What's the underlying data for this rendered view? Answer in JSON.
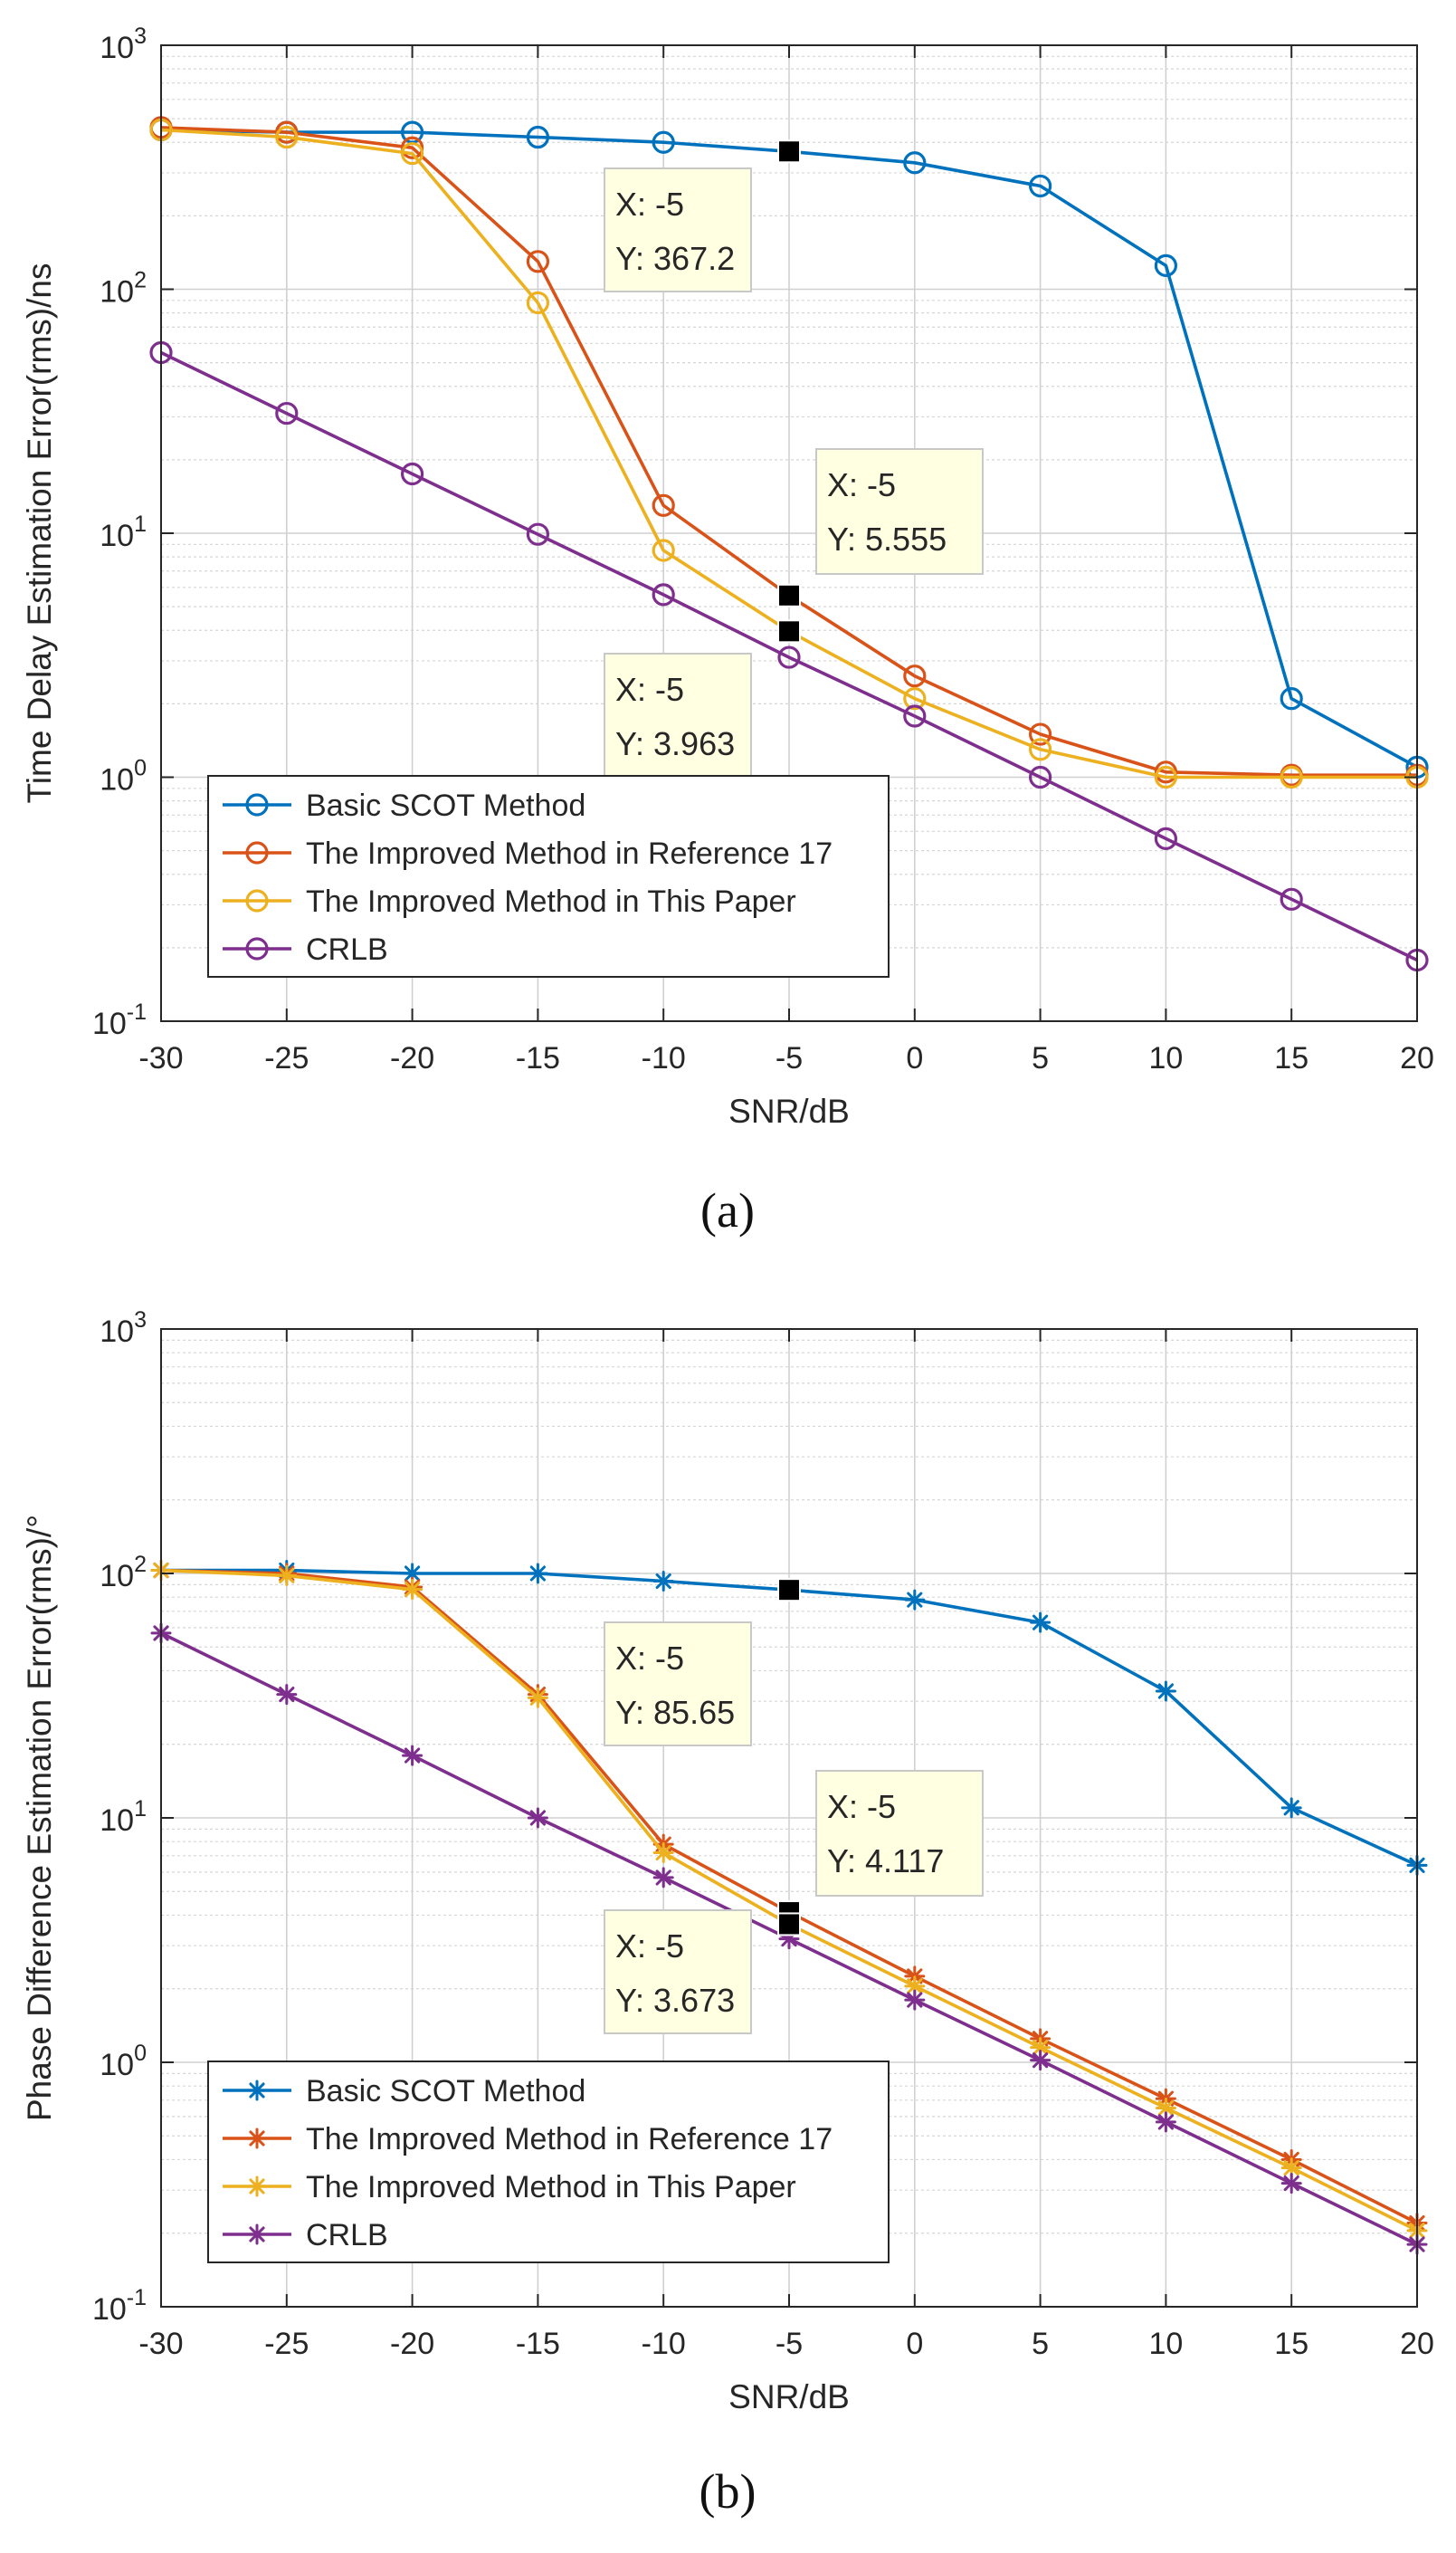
{
  "chart_data": [
    {
      "type": "line",
      "panel_label": "(a)",
      "title": "",
      "xlabel": "SNR/dB",
      "ylabel": "Time Delay Estimation Error(rms)/ns",
      "yscale": "log",
      "xlim": [
        -30,
        20
      ],
      "ylim": [
        0.1,
        1000
      ],
      "grid": true,
      "marker": "circle",
      "x": [
        -30,
        -25,
        -20,
        -15,
        -10,
        -5,
        0,
        5,
        10,
        15,
        20
      ],
      "x_tick_labels": [
        "-30",
        "-25",
        "-20",
        "-15",
        "-10",
        "-5",
        "0",
        "5",
        "10",
        "15",
        "20"
      ],
      "y_ticks": [
        {
          "value": 0.1,
          "base": "10",
          "exp": "-1"
        },
        {
          "value": 1,
          "base": "10",
          "exp": "0"
        },
        {
          "value": 10,
          "base": "10",
          "exp": "1"
        },
        {
          "value": 100,
          "base": "10",
          "exp": "2"
        },
        {
          "value": 1000,
          "base": "10",
          "exp": "3"
        }
      ],
      "legend_position": "bottom-left",
      "series": [
        {
          "name": "Basic SCOT Method",
          "color": "#0072BD",
          "values": [
            450,
            440,
            440,
            420,
            400,
            367.2,
            330,
            265,
            125,
            2.1,
            1.1
          ]
        },
        {
          "name": "The Improved Method in Reference 17",
          "color": "#D95319",
          "values": [
            460,
            440,
            380,
            130,
            13,
            5.555,
            2.6,
            1.5,
            1.05,
            1.02,
            1.02
          ]
        },
        {
          "name": "The Improved Method in This Paper",
          "color": "#EDB120",
          "values": [
            450,
            420,
            360,
            88,
            8.5,
            3.963,
            2.1,
            1.3,
            1.0,
            1.0,
            1.0
          ]
        },
        {
          "name": "CRLB",
          "color": "#7E2F8E",
          "values": [
            55,
            31,
            17.5,
            9.9,
            5.6,
            3.1,
            1.78,
            1.0,
            0.56,
            0.316,
            0.178
          ]
        }
      ],
      "datatips": [
        {
          "x_text": "X: -5",
          "y_text": "Y: 367.2",
          "x": -5,
          "y": 367.2
        },
        {
          "x_text": "X: -5",
          "y_text": "Y: 5.555",
          "x": -5,
          "y": 5.555
        },
        {
          "x_text": "X: -5",
          "y_text": "Y: 3.963",
          "x": -5,
          "y": 3.963
        }
      ]
    },
    {
      "type": "line",
      "panel_label": "(b)",
      "title": "",
      "xlabel": "SNR/dB",
      "ylabel": "Phase Difference Estimation Error(rms)/°",
      "yscale": "log",
      "xlim": [
        -30,
        20
      ],
      "ylim": [
        0.1,
        1000
      ],
      "grid": true,
      "marker": "asterisk",
      "x": [
        -30,
        -25,
        -20,
        -15,
        -10,
        -5,
        0,
        5,
        10,
        15,
        20
      ],
      "x_tick_labels": [
        "-30",
        "-25",
        "-20",
        "-15",
        "-10",
        "-5",
        "0",
        "5",
        "10",
        "15",
        "20"
      ],
      "y_ticks": [
        {
          "value": 0.1,
          "base": "10",
          "exp": "-1"
        },
        {
          "value": 1,
          "base": "10",
          "exp": "0"
        },
        {
          "value": 10,
          "base": "10",
          "exp": "1"
        },
        {
          "value": 100,
          "base": "10",
          "exp": "2"
        },
        {
          "value": 1000,
          "base": "10",
          "exp": "3"
        }
      ],
      "legend_position": "bottom-left",
      "series": [
        {
          "name": "Basic SCOT Method",
          "color": "#0072BD",
          "values": [
            103,
            103,
            100,
            100,
            93,
            85.65,
            78,
            63,
            33,
            11,
            6.4
          ]
        },
        {
          "name": "The Improved Method in Reference 17",
          "color": "#D95319",
          "values": [
            103,
            100,
            88,
            32,
            7.8,
            4.117,
            2.25,
            1.25,
            0.71,
            0.4,
            0.22
          ]
        },
        {
          "name": "The Improved Method in This Paper",
          "color": "#EDB120",
          "values": [
            103,
            98,
            86,
            31,
            7.2,
            3.673,
            2.05,
            1.15,
            0.65,
            0.37,
            0.205
          ]
        },
        {
          "name": "CRLB",
          "color": "#7E2F8E",
          "values": [
            57,
            32,
            18,
            10,
            5.7,
            3.2,
            1.8,
            1.02,
            0.57,
            0.32,
            0.18
          ]
        }
      ],
      "datatips": [
        {
          "x_text": "X: -5",
          "y_text": "Y: 85.65",
          "x": -5,
          "y": 85.65
        },
        {
          "x_text": "X: -5",
          "y_text": "Y: 4.117",
          "x": -5,
          "y": 4.117
        },
        {
          "x_text": "X: -5",
          "y_text": "Y: 3.673",
          "x": -5,
          "y": 3.673
        }
      ]
    }
  ]
}
